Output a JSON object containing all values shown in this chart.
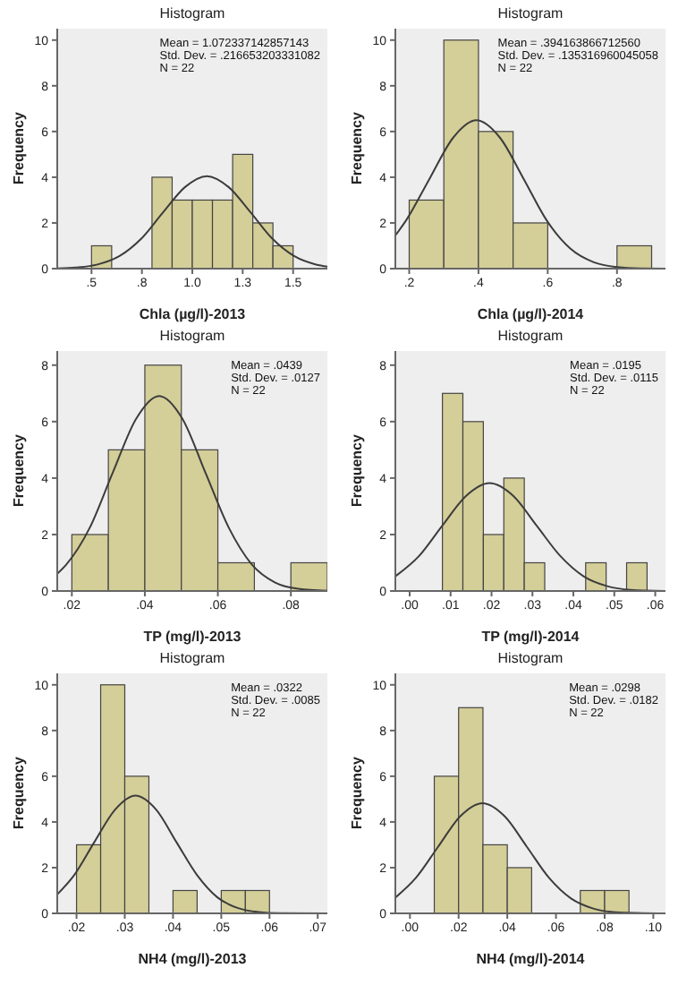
{
  "chart_data": [
    {
      "type": "histogram",
      "title": "Histogram",
      "xlabel": "Chla (µg/l)-2013",
      "ylabel": "Frequency",
      "annotations": [
        "Mean = 1.072337142857143",
        "Std. Dev. = .216653203331082",
        "N = 22"
      ],
      "bins": [
        0.5,
        0.6,
        0.7,
        0.8,
        0.9,
        1.0,
        1.1,
        1.2,
        1.3,
        1.4,
        1.5
      ],
      "values": [
        1,
        0,
        0,
        4,
        3,
        3,
        3,
        5,
        2,
        1
      ],
      "color": "#d4ce98",
      "xlim": [
        0.33,
        1.67
      ],
      "ylim": [
        0,
        10.5
      ],
      "xticks": [
        {
          "value": 0.5,
          "label": ".5"
        },
        {
          "value": 0.75,
          "label": ".8"
        },
        {
          "value": 1.0,
          "label": "1.0"
        },
        {
          "value": 1.25,
          "label": "1.3"
        },
        {
          "value": 1.5,
          "label": "1.5"
        }
      ],
      "yticks": [
        0,
        2,
        4,
        6,
        8,
        10
      ],
      "series": [
        {
          "type": "line",
          "color": "#3c3c3c",
          "x": [
            0.33,
            0.422,
            0.53,
            0.639,
            0.747,
            0.855,
            0.964,
            1.072,
            1.18,
            1.289,
            1.397,
            1.505,
            1.614,
            1.67
          ],
          "values": [
            0.01,
            0.05,
            0.18,
            0.55,
            1.31,
            2.46,
            3.57,
            4.05,
            3.57,
            2.46,
            1.31,
            0.55,
            0.18,
            0.09
          ]
        }
      ]
    },
    {
      "type": "histogram",
      "title": "Histogram",
      "xlabel": "Chla (µg/l)-2014",
      "ylabel": "Frequency",
      "annotations": [
        "Mean = .394163866712560",
        "Std. Dev. = .135316960045058",
        "N = 22"
      ],
      "bins": [
        0.2,
        0.3,
        0.4,
        0.5,
        0.6,
        0.7,
        0.8,
        0.9
      ],
      "values": [
        3,
        10,
        6,
        2,
        0,
        0,
        1
      ],
      "color": "#d4ce98",
      "xlim": [
        0.16,
        0.94
      ],
      "ylim": [
        0,
        10.5
      ],
      "xticks": [
        {
          "value": 0.2,
          "label": ".2"
        },
        {
          "value": 0.4,
          "label": ".4"
        },
        {
          "value": 0.6,
          "label": ".6"
        },
        {
          "value": 0.8,
          "label": ".8"
        }
      ],
      "yticks": [
        0,
        2,
        4,
        6,
        8,
        10
      ],
      "series": [
        {
          "type": "line",
          "color": "#3c3c3c",
          "x": [
            0.16,
            0.191,
            0.259,
            0.327,
            0.394,
            0.462,
            0.53,
            0.597,
            0.665,
            0.733,
            0.8,
            0.868,
            0.94
          ],
          "values": [
            1.45,
            2.11,
            3.94,
            5.73,
            6.49,
            5.73,
            3.94,
            2.11,
            0.88,
            0.28,
            0.07,
            0.01,
            0
          ]
        }
      ]
    },
    {
      "type": "histogram",
      "title": "Histogram",
      "xlabel": "TP (mg/l)-2013",
      "ylabel": "Frequency",
      "annotations": [
        "Mean = .0439",
        "Std. Dev. = .0127",
        "N = 22"
      ],
      "bins": [
        0.02,
        0.03,
        0.04,
        0.05,
        0.06,
        0.07,
        0.08,
        0.09
      ],
      "values": [
        2,
        5,
        8,
        5,
        1,
        0,
        1
      ],
      "color": "#d4ce98",
      "xlim": [
        0.016,
        0.09
      ],
      "ylim": [
        0,
        8.5
      ],
      "xticks": [
        {
          "value": 0.02,
          "label": ".02"
        },
        {
          "value": 0.04,
          "label": ".04"
        },
        {
          "value": 0.06,
          "label": ".06"
        },
        {
          "value": 0.08,
          "label": ".08"
        }
      ],
      "yticks": [
        0,
        2,
        4,
        6,
        8
      ],
      "series": [
        {
          "type": "line",
          "color": "#3c3c3c",
          "x": [
            0.016,
            0.0185,
            0.0249,
            0.0312,
            0.0376,
            0.0439,
            0.0503,
            0.0566,
            0.063,
            0.0693,
            0.0757,
            0.082,
            0.09
          ],
          "values": [
            0.61,
            0.94,
            2.24,
            4.19,
            6.1,
            6.91,
            6.1,
            4.19,
            2.24,
            0.94,
            0.3,
            0.08,
            0.01
          ]
        }
      ]
    },
    {
      "type": "histogram",
      "title": "Histogram",
      "xlabel": "TP (mg/l)-2014",
      "ylabel": "Frequency",
      "annotations": [
        "Mean = .0195",
        "Std. Dev. = .0115",
        "N = 22"
      ],
      "bins": [
        0.008,
        0.013,
        0.018,
        0.023,
        0.028,
        0.033,
        0.038,
        0.043,
        0.048,
        0.053,
        0.058
      ],
      "values": [
        7,
        6,
        2,
        4,
        1,
        0,
        0,
        1,
        0,
        1
      ],
      "color": "#d4ce98",
      "xlim": [
        -0.0035,
        0.0625
      ],
      "ylim": [
        0,
        8.5
      ],
      "xticks": [
        {
          "value": 0,
          "label": ".00"
        },
        {
          "value": 0.01,
          "label": ".01"
        },
        {
          "value": 0.02,
          "label": ".02"
        },
        {
          "value": 0.03,
          "label": ".03"
        },
        {
          "value": 0.04,
          "label": ".04"
        },
        {
          "value": 0.05,
          "label": ".05"
        },
        {
          "value": 0.06,
          "label": ".06"
        }
      ],
      "yticks": [
        0,
        2,
        4,
        6,
        8
      ],
      "series": [
        {
          "type": "line",
          "color": "#3c3c3c",
          "x": [
            -0.0035,
            0.0023,
            0.008,
            0.0138,
            0.0195,
            0.0253,
            0.031,
            0.0368,
            0.0425,
            0.0483,
            0.054,
            0.0625
          ],
          "values": [
            0.52,
            1.24,
            2.32,
            3.37,
            3.82,
            3.37,
            2.32,
            1.24,
            0.52,
            0.17,
            0.04,
            0
          ]
        }
      ]
    },
    {
      "type": "histogram",
      "title": "Histogram",
      "xlabel": "NH4 (mg/l)-2013",
      "ylabel": "Frequency",
      "annotations": [
        "Mean = .0322",
        "Std. Dev. = .0085",
        "N = 22"
      ],
      "bins": [
        0.02,
        0.025,
        0.03,
        0.035,
        0.04,
        0.045,
        0.05,
        0.055,
        0.06
      ],
      "values": [
        3,
        10,
        6,
        0,
        1,
        0,
        1,
        1
      ],
      "color": "#d4ce98",
      "xlim": [
        0.016,
        0.072
      ],
      "ylim": [
        0,
        10.5
      ],
      "xticks": [
        {
          "value": 0.02,
          "label": ".02"
        },
        {
          "value": 0.03,
          "label": ".03"
        },
        {
          "value": 0.04,
          "label": ".04"
        },
        {
          "value": 0.05,
          "label": ".05"
        },
        {
          "value": 0.06,
          "label": ".06"
        },
        {
          "value": 0.07,
          "label": ".07"
        }
      ],
      "yticks": [
        0,
        2,
        4,
        6,
        8,
        10
      ],
      "series": [
        {
          "type": "line",
          "color": "#3c3c3c",
          "x": [
            0.016,
            0.0195,
            0.0237,
            0.028,
            0.0322,
            0.0365,
            0.0407,
            0.045,
            0.0492,
            0.0535,
            0.0577,
            0.062,
            0.072
          ],
          "values": [
            0.83,
            1.67,
            3.12,
            4.54,
            5.15,
            4.54,
            3.12,
            1.67,
            0.7,
            0.23,
            0.06,
            0.01,
            0
          ]
        }
      ]
    },
    {
      "type": "histogram",
      "title": "Histogram",
      "xlabel": "NH4 (mg/l)-2014",
      "ylabel": "Frequency",
      "annotations": [
        "Mean = .0298",
        "Std. Dev. = .0182",
        "N = 22"
      ],
      "bins": [
        0.01,
        0.02,
        0.03,
        0.04,
        0.05,
        0.06,
        0.07,
        0.08,
        0.09
      ],
      "values": [
        6,
        9,
        3,
        2,
        0,
        0,
        1,
        1
      ],
      "color": "#d4ce98",
      "xlim": [
        -0.006,
        0.105
      ],
      "ylim": [
        0,
        10.5
      ],
      "xticks": [
        {
          "value": 0,
          "label": ".00"
        },
        {
          "value": 0.02,
          "label": ".02"
        },
        {
          "value": 0.04,
          "label": ".04"
        },
        {
          "value": 0.06,
          "label": ".06"
        },
        {
          "value": 0.08,
          "label": ".08"
        },
        {
          "value": 0.1,
          "label": ".10"
        }
      ],
      "yticks": [
        0,
        2,
        4,
        6,
        8,
        10
      ],
      "series": [
        {
          "type": "line",
          "color": "#3c3c3c",
          "x": [
            -0.006,
            0.0025,
            0.0116,
            0.0207,
            0.0298,
            0.0389,
            0.048,
            0.0571,
            0.0662,
            0.0753,
            0.0844,
            0.105
          ],
          "values": [
            0.69,
            1.56,
            2.92,
            4.25,
            4.82,
            4.25,
            2.92,
            1.56,
            0.65,
            0.21,
            0.05,
            0
          ]
        }
      ]
    }
  ]
}
